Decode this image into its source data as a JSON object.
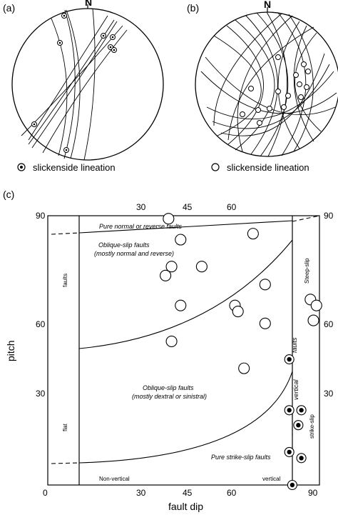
{
  "panels": {
    "a": {
      "label": "(a)",
      "north": "N",
      "legend": "slickenside lineation"
    },
    "b": {
      "label": "(b)",
      "north": "N",
      "legend": "slickenside lineation"
    },
    "c": {
      "label": "(c)"
    }
  },
  "chart_data": {
    "type": "scatter",
    "xlabel": "fault dip",
    "ylabel": "pitch",
    "xlim": [
      0,
      90
    ],
    "ylim": [
      0,
      90
    ],
    "x_ticks_bottom": [
      "0",
      "30",
      "45",
      "60",
      "90"
    ],
    "x_ticks_top": [
      "30",
      "45",
      "60"
    ],
    "y_ticks": [
      "0",
      "30",
      "60",
      "90"
    ],
    "y_ticks_right": [
      "30",
      "60",
      "90"
    ],
    "regions": {
      "pure_normal": "Pure normal or reverse faults",
      "oblique_normal": "Oblique-slip faults",
      "oblique_normal_sub": "(mostly normal and reverse)",
      "oblique_strike": "Oblique-slip faults",
      "oblique_strike_sub": "(mostly dextral or sinistral)",
      "pure_strike": "Pure strike-slip faults",
      "faults_left": "faults",
      "flat": "flat",
      "faults_right": "faults",
      "vertical_right": "vertical",
      "steep_slip": "Steep-slip",
      "strike_slip": "strike-slip",
      "non_vertical": "Non-vertical",
      "vertical_bottom": "vertical"
    },
    "series": [
      {
        "marker": "open-circle",
        "points": [
          [
            40,
            89
          ],
          [
            44,
            82
          ],
          [
            68,
            84
          ],
          [
            39,
            70
          ],
          [
            41,
            73
          ],
          [
            51,
            73
          ],
          [
            44,
            60
          ],
          [
            62,
            60
          ],
          [
            63,
            58
          ],
          [
            72,
            67
          ],
          [
            72,
            54
          ],
          [
            41,
            48
          ],
          [
            65,
            39
          ],
          [
            87,
            62
          ],
          [
            89,
            60
          ],
          [
            88,
            55
          ]
        ]
      },
      {
        "marker": "dotted-circle",
        "points": [
          [
            80,
            42
          ],
          [
            80,
            25
          ],
          [
            84,
            25
          ],
          [
            83,
            20
          ],
          [
            80,
            11
          ],
          [
            84,
            9
          ],
          [
            81,
            0
          ]
        ]
      }
    ]
  }
}
